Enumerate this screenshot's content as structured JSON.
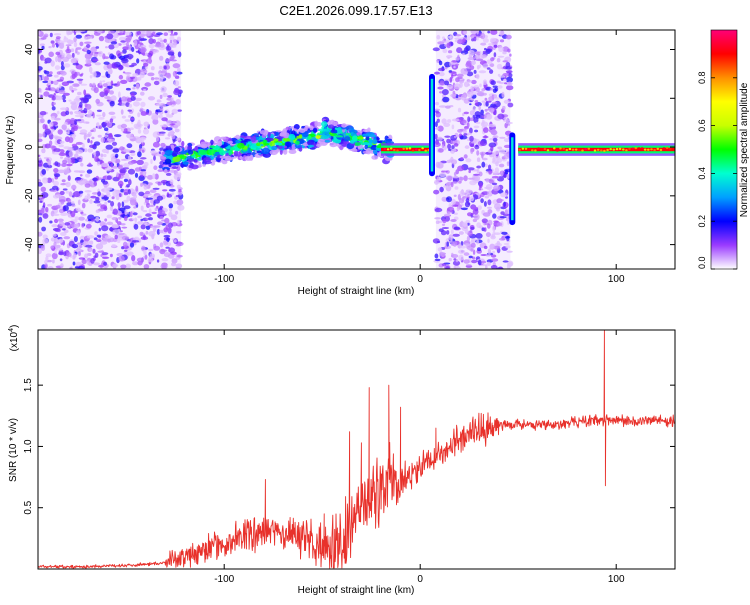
{
  "chart_data": [
    {
      "type": "heatmap",
      "title": "C2E1.2026.099.17.57.E13",
      "xlabel": "Height of straight line (km)",
      "ylabel": "Frequency (Hz)",
      "xlim": [
        -195,
        130
      ],
      "ylim": [
        -50,
        48
      ],
      "xticks": [
        -100,
        0,
        100
      ],
      "xtick_labels": [
        "-100",
        "0",
        "100"
      ],
      "yticks": [
        -40,
        -20,
        0,
        20,
        40
      ],
      "ytick_labels": [
        "-40",
        "-20",
        "0",
        "20",
        "40"
      ],
      "colorbar": {
        "label": "Normalized spectral amplitude",
        "range": [
          0,
          1
        ],
        "ticks": [
          0.0,
          0.2,
          0.4,
          0.6,
          0.8
        ],
        "tick_labels": [
          "0.0",
          "0.2",
          "0.4",
          "0.6",
          "0.8"
        ],
        "colors": [
          "#ffffff",
          "#9a3bff",
          "#0000ff",
          "#00a0ff",
          "#00ffd0",
          "#00ff00",
          "#c8ff00",
          "#ffff00",
          "#ff9000",
          "#ff0000",
          "#ff0078"
        ]
      },
      "regions": [
        {
          "name": "noise-left",
          "x": [
            -195,
            -122
          ],
          "amplitude": 0.15
        },
        {
          "name": "rising-band",
          "x": [
            -130,
            -15
          ],
          "freq_start": -5,
          "freq_end": 5,
          "amplitude": 0.5
        },
        {
          "name": "noise-middle",
          "x": [
            8,
            46
          ],
          "amplitude": 0.15
        },
        {
          "name": "carrier",
          "x": [
            -20,
            130
          ],
          "freq": -1,
          "amplitude": 0.9
        }
      ]
    },
    {
      "type": "line",
      "title": "",
      "xlabel": "Height of straight line (km)",
      "ylabel": "SNR (10 * v/v)",
      "y_scale_label": "(x10",
      "y_scale_exp": "4",
      "y_scale_close": ")",
      "xlim": [
        -195,
        130
      ],
      "ylim": [
        0,
        1.95
      ],
      "xticks": [
        -100,
        0,
        100
      ],
      "xtick_labels": [
        "-100",
        "0",
        "100"
      ],
      "yticks": [
        0.5,
        1.0,
        1.5
      ],
      "ytick_labels": [
        "0.5",
        "1.0",
        "1.5"
      ],
      "series": [
        {
          "name": "SNR",
          "color": "#e8312b",
          "x": [
            -195,
            -170,
            -150,
            -130,
            -120,
            -110,
            -100,
            -90,
            -80,
            -75,
            -70,
            -60,
            -55,
            -50,
            -45,
            -40,
            -35,
            -30,
            -25,
            -20,
            -15,
            -10,
            -5,
            0,
            5,
            10,
            15,
            20,
            25,
            30,
            40,
            50,
            60,
            70,
            80,
            85,
            90,
            93,
            95,
            100,
            110,
            120,
            130
          ],
          "values": [
            0.02,
            0.02,
            0.03,
            0.05,
            0.1,
            0.15,
            0.2,
            0.28,
            0.3,
            0.32,
            0.28,
            0.28,
            0.22,
            0.15,
            0.18,
            0.22,
            0.35,
            0.5,
            0.6,
            0.65,
            0.7,
            0.72,
            0.75,
            0.85,
            0.9,
            0.95,
            1.0,
            1.05,
            1.1,
            1.12,
            1.18,
            1.18,
            1.17,
            1.18,
            1.2,
            1.2,
            1.22,
            1.2,
            1.22,
            1.22,
            1.2,
            1.22,
            1.2
          ],
          "spikes": [
            {
              "x": -79,
              "value": 0.73
            },
            {
              "x": -49,
              "value": 0.45
            },
            {
              "x": -36,
              "value": 1.12
            },
            {
              "x": -30,
              "value": 1.03
            },
            {
              "x": -26,
              "value": 1.48
            },
            {
              "x": -16,
              "value": 1.5
            },
            {
              "x": -10,
              "value": 1.32
            },
            {
              "x": 8,
              "value": 1.15
            },
            {
              "x": 94,
              "value": 1.95
            },
            {
              "x": 94.5,
              "value": 0.68
            }
          ]
        }
      ]
    }
  ]
}
